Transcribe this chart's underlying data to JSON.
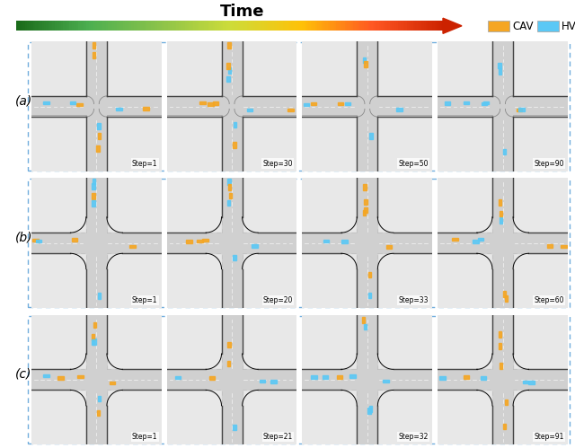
{
  "title": "Time",
  "rows": [
    "(a)",
    "(b)",
    "(c)"
  ],
  "row_steps": [
    [
      "Step=1",
      "Step=30",
      "Step=50",
      "Step=90"
    ],
    [
      "Step=1",
      "Step=20",
      "Step=33",
      "Step=60"
    ],
    [
      "Step=1",
      "Step=21",
      "Step=32",
      "Step=91"
    ]
  ],
  "legend_cav_color": "#F5A623",
  "legend_hv_color": "#5BC8F5",
  "legend_cav_label": "CAV",
  "legend_hv_label": "HV",
  "quad_color": "#E8E8E8",
  "road_color": "#D0D0D0",
  "road_dark": "#444444",
  "road_dark2": "#666666",
  "dashed_border_color": "#72AEDD",
  "dashed_line_color": "#AAAAAA",
  "arrow_start_color": "#1A6B1A",
  "arrow_mid_color": "#8BC34A",
  "arrow_end_color": "#CC2200"
}
